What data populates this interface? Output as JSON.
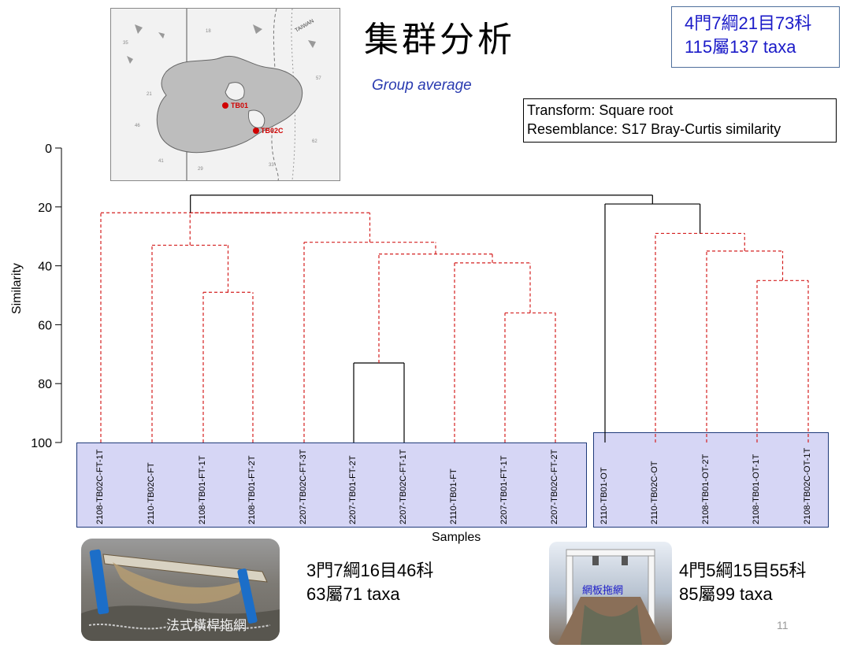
{
  "title": "集群分析",
  "method": "Group average",
  "taxa_summary": {
    "line1": "4門7綱21目73科",
    "line2": "115屬137 taxa"
  },
  "transform": {
    "line1": "Transform: Square root",
    "line2": "Resemblance: S17 Bray-Curtis similarity"
  },
  "map": {
    "points": [
      "TB01",
      "TB02C"
    ],
    "label": "TAIWAN"
  },
  "chart_data": {
    "type": "dendrogram",
    "ylabel": "Similarity",
    "xlabel": "Samples",
    "ylim": [
      0,
      100
    ],
    "yticks": [
      0,
      20,
      40,
      60,
      80,
      100
    ],
    "samples": [
      "2108-TB02C-FT-1T",
      "2110-TB02C-FT",
      "2108-TB01-FT-1T",
      "2108-TB01-FT-2T",
      "2207-TB02C-FT-3T",
      "2207-TB01-FT-2T",
      "2207-TB02C-FT-1T",
      "2110-TB01-FT",
      "2207-TB01-FT-1T",
      "2207-TB02C-FT-2T",
      "2110-TB01-OT",
      "2110-TB02C-OT",
      "2108-TB01-OT-2T",
      "2108-TB01-OT-1T",
      "2108-TB02C-OT-1T"
    ],
    "merges": [
      {
        "id": "a",
        "children": [
          "s2",
          "s3"
        ],
        "height": 49,
        "style": "dashed"
      },
      {
        "id": "b",
        "children": [
          "s1",
          "a"
        ],
        "height": 33,
        "style": "dashed"
      },
      {
        "id": "c",
        "children": [
          "s5",
          "s6"
        ],
        "height": 73,
        "style": "solid"
      },
      {
        "id": "d",
        "children": [
          "s8",
          "s9"
        ],
        "height": 56,
        "style": "dashed"
      },
      {
        "id": "e",
        "children": [
          "s7",
          "d"
        ],
        "height": 39,
        "style": "dashed"
      },
      {
        "id": "f",
        "children": [
          "c",
          "e"
        ],
        "height": 36,
        "style": "dashed"
      },
      {
        "id": "g",
        "children": [
          "s4",
          "f"
        ],
        "height": 32,
        "style": "dashed"
      },
      {
        "id": "h",
        "children": [
          "b",
          "g"
        ],
        "height": 22,
        "style": "dashed"
      },
      {
        "id": "i",
        "children": [
          "s0",
          "h"
        ],
        "height": 22,
        "style": "dashed"
      },
      {
        "id": "j",
        "children": [
          "s13",
          "s14"
        ],
        "height": 45,
        "style": "dashed"
      },
      {
        "id": "k",
        "children": [
          "s12",
          "j"
        ],
        "height": 35,
        "style": "dashed"
      },
      {
        "id": "l",
        "children": [
          "s11",
          "k"
        ],
        "height": 29,
        "style": "dashed"
      },
      {
        "id": "m",
        "children": [
          "s10",
          "l"
        ],
        "height": 19,
        "style": "solid"
      },
      {
        "id": "n",
        "children": [
          "i",
          "m"
        ],
        "height": 16,
        "style": "solid"
      }
    ],
    "groups": [
      {
        "name": "FT",
        "members": [
          0,
          9
        ]
      },
      {
        "name": "OT",
        "members": [
          10,
          14
        ]
      }
    ]
  },
  "ft_summary": {
    "line1": "3門7綱16目46科",
    "line2": "63屬71 taxa",
    "photo_caption": "法式橫桿拖網"
  },
  "ot_summary": {
    "line1": "4門5綱15目55科",
    "line2": "85屬99 taxa",
    "photo_caption": "網板拖網"
  },
  "page_number": "11",
  "colors": {
    "dashed": "#d42020",
    "solid": "#000000",
    "group_fill": "#d6d6f5",
    "accent": "#1a1ac8"
  }
}
